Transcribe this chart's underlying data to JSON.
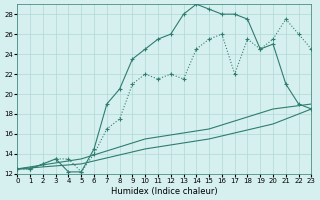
{
  "title": "",
  "xlabel": "Humidex (Indice chaleur)",
  "ylabel": "",
  "bg_color": "#d6f0ef",
  "line_color": "#2e7d6e",
  "grid_color": "#b0d8d4",
  "xlim": [
    0,
    23
  ],
  "ylim": [
    12,
    29
  ],
  "yticks": [
    12,
    14,
    16,
    18,
    20,
    22,
    24,
    26,
    28
  ],
  "xticks": [
    0,
    1,
    2,
    3,
    4,
    5,
    6,
    7,
    8,
    9,
    10,
    11,
    12,
    13,
    14,
    15,
    16,
    17,
    18,
    19,
    20,
    21,
    22,
    23
  ],
  "line1_x": [
    0,
    1,
    2,
    3,
    4,
    5,
    6,
    7,
    8,
    9,
    10,
    11,
    12,
    13,
    14,
    15,
    16,
    17,
    18,
    19,
    20,
    21,
    22,
    23
  ],
  "line1_y": [
    12.5,
    12.5,
    13.0,
    13.5,
    13.5,
    12.2,
    14.0,
    16.5,
    17.5,
    21.0,
    22.0,
    21.5,
    22.0,
    21.5,
    24.5,
    25.5,
    26.0,
    22.0,
    25.5,
    24.5,
    25.5,
    27.5,
    26.0,
    24.5
  ],
  "line2_x": [
    0,
    1,
    2,
    3,
    4,
    5,
    6,
    7,
    8,
    9,
    10,
    11,
    12,
    13,
    14,
    15,
    16,
    17,
    18,
    19,
    20,
    21,
    22,
    23
  ],
  "line2_y": [
    12.5,
    12.5,
    13.0,
    13.5,
    12.2,
    12.2,
    14.5,
    19.0,
    20.5,
    23.5,
    24.5,
    25.5,
    26.0,
    28.0,
    29.0,
    28.5,
    28.0,
    28.0,
    27.5,
    24.5,
    25.0,
    21.0,
    19.0,
    18.5
  ],
  "line3_x": [
    0,
    5,
    10,
    15,
    20,
    23
  ],
  "line3_y": [
    12.5,
    13.5,
    15.5,
    16.5,
    18.5,
    19.0
  ],
  "line4_x": [
    0,
    5,
    10,
    15,
    20,
    23
  ],
  "line4_y": [
    12.5,
    13.0,
    14.5,
    15.5,
    17.0,
    18.5
  ]
}
